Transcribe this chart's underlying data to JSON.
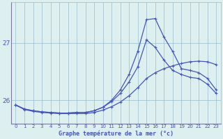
{
  "title": "Graphe température de la mer (°c)",
  "x": [
    0,
    1,
    2,
    3,
    4,
    5,
    6,
    7,
    8,
    9,
    10,
    11,
    12,
    13,
    14,
    15,
    16,
    17,
    18,
    19,
    20,
    21,
    22,
    23
  ],
  "line_top": [
    25.92,
    25.85,
    25.82,
    25.8,
    25.79,
    25.78,
    25.78,
    25.79,
    25.79,
    25.82,
    25.88,
    26.0,
    26.18,
    26.45,
    26.85,
    27.4,
    27.42,
    27.1,
    26.85,
    26.55,
    26.52,
    26.48,
    26.38,
    26.18
  ],
  "line_mid": [
    25.92,
    25.85,
    25.82,
    25.8,
    25.79,
    25.78,
    25.78,
    25.79,
    25.79,
    25.82,
    25.88,
    25.98,
    26.12,
    26.32,
    26.58,
    27.05,
    26.92,
    26.7,
    26.52,
    26.45,
    26.4,
    26.38,
    26.28,
    26.12
  ],
  "line_bot": [
    25.92,
    25.84,
    25.81,
    25.79,
    25.78,
    25.77,
    25.77,
    25.77,
    25.77,
    25.79,
    25.83,
    25.89,
    25.97,
    26.08,
    26.22,
    26.38,
    26.48,
    26.55,
    26.6,
    26.64,
    26.67,
    26.68,
    26.67,
    26.62
  ],
  "line_color": "#4455bb",
  "bg_color": "#ddf0ef",
  "grid_color": "#99bbcc",
  "ytick_vals": [
    26,
    27
  ],
  "ylim": [
    25.6,
    27.7
  ],
  "xlim": [
    -0.5,
    23.5
  ],
  "marker": "+",
  "markersize": 3.5
}
